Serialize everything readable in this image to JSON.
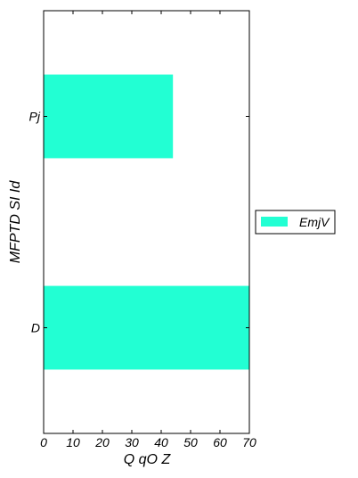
{
  "chart_data": {
    "type": "bar",
    "orientation": "horizontal",
    "categories": [
      "D",
      "Pj"
    ],
    "series": [
      {
        "name": "EmjV",
        "values": [
          70,
          44
        ],
        "color": "#22ffd3"
      }
    ],
    "xlabel": "Q qO  Z",
    "ylabel": "MFPTD SI Id",
    "xlim": [
      0,
      70
    ],
    "xticks": [
      0,
      10,
      20,
      30,
      40,
      50,
      60,
      70
    ],
    "grid": false,
    "legend_position": "outside-right"
  }
}
